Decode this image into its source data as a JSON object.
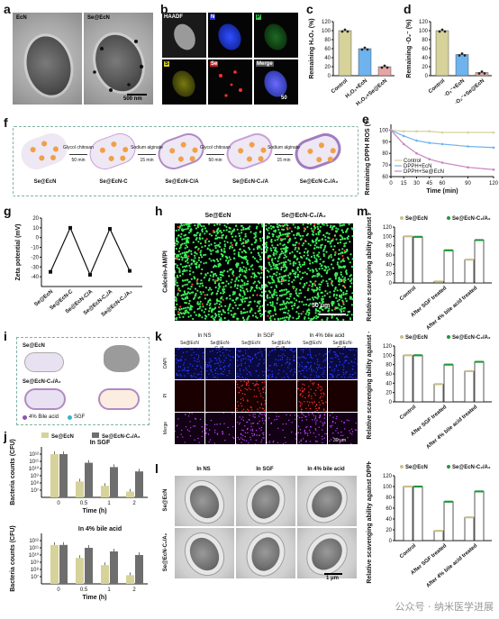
{
  "panels": {
    "a": {
      "label": "a",
      "titles": [
        "EcN",
        "Se@EcN"
      ],
      "scale": "500 nm"
    },
    "b": {
      "label": "b",
      "channels": [
        "HAADF",
        "N",
        "P",
        "S",
        "Se",
        "Merge"
      ],
      "scale": "50"
    },
    "c": {
      "label": "c",
      "ylabel": "Remaining H₂O₂ (%)",
      "categories": [
        "Control",
        "H₂O₂+EcN",
        "H₂O₂+Se@EcN"
      ]
    },
    "d": {
      "label": "d",
      "ylabel": "Remaining ·O₂⁻ (%)",
      "categories": [
        "Control",
        "·O₂⁻+EcN",
        "·O₂⁻+Se@EcN"
      ]
    },
    "e": {
      "label": "e",
      "ylabel": "Remaining DPPH ROS (%)",
      "xlabel": "Time (min)",
      "legend": [
        "Control",
        "DPPH+EcN",
        "DPPH+Se@EcN"
      ]
    },
    "f": {
      "label": "f",
      "cells": [
        "Se@EcN",
        "Se@EcN-C",
        "Se@EcN-C/A",
        "Se@EcN-C₂/A",
        "Se@EcN-C₂/A₂"
      ],
      "steps": [
        [
          "Glycol chitosan",
          "50 min"
        ],
        [
          "Sodium alginate",
          "15 min"
        ],
        [
          "Glycol chitosan",
          "50 min"
        ],
        [
          "Sodium alginate",
          "15 min"
        ]
      ]
    },
    "g": {
      "label": "g",
      "ylabel": "Zeta potential (mV)"
    },
    "h": {
      "label": "h",
      "titles": [
        "Se@EcN",
        "Se@EcN-C₂/A₂"
      ],
      "ylabel": "Calcein-AM/PI",
      "scale": "50 μm"
    },
    "i": {
      "label": "i",
      "top": "Se@EcN",
      "bottom": "Se@EcN-C₂/A₂",
      "legend": [
        "4% Bile acid",
        "SGF"
      ]
    },
    "j": {
      "label": "j",
      "legend": [
        "Se@EcN",
        "Se@EcN-C₂/A₂"
      ],
      "titles": [
        "In SGF",
        "In 4% bile acid"
      ],
      "ylabel": "Bacteria counts (CFU)",
      "xlabel": "Time (h)"
    },
    "k": {
      "label": "k",
      "groups": [
        "In NS",
        "In SGF",
        "In 4% bile acid"
      ],
      "sub": [
        "Se@EcN",
        "Se@EcN-C₂/A₂"
      ],
      "rows": [
        "DAPI",
        "PI",
        "Merge"
      ],
      "scale": "30 μm"
    },
    "l": {
      "label": "l",
      "cols": [
        "In NS",
        "In SGF",
        "In 4% bile acid"
      ],
      "rows": [
        "Se@EcN",
        "Se@EcN-C₂/A₂"
      ],
      "scale": "1 μm"
    },
    "m": {
      "label": "m",
      "legend": [
        "Se@EcN",
        "Se@EcN-C₂/A₂"
      ],
      "ylabels": [
        "Relative scavenging ability against H₂O₂ (%)",
        "Relative scavenging ability against ·O₂⁻ (%)",
        "Relative scavenging ability against DPPH ROS (%)"
      ],
      "categories": [
        "Control",
        "After SGF treated",
        "After 4% bile acid treated"
      ]
    }
  },
  "watermark": "公众号 · 纳米医学进展",
  "colors": {
    "olive": "#d6d29a",
    "gray": "#6e6e6e",
    "blue": "#6fb3ee",
    "pink": "#e7a6a6",
    "green": "#1c9a38",
    "purple": "#c984c1"
  },
  "chart_data": [
    {
      "id": "c",
      "type": "bar",
      "categories": [
        "Control",
        "H₂O₂+EcN",
        "H₂O₂+Se@EcN"
      ],
      "values": [
        100,
        60,
        20
      ],
      "ylim": [
        0,
        120
      ],
      "yticks": [
        "0",
        "20",
        "40",
        "60",
        "80",
        "100",
        "120"
      ]
    },
    {
      "id": "d",
      "type": "bar",
      "categories": [
        "Control",
        "·O₂⁻+EcN",
        "·O₂⁻+Se@EcN"
      ],
      "values": [
        100,
        47,
        7
      ],
      "ylim": [
        0,
        120
      ],
      "yticks": [
        "0",
        "20",
        "40",
        "60",
        "80",
        "100",
        "120"
      ]
    },
    {
      "id": "e",
      "type": "line",
      "x": [
        0,
        15,
        30,
        45,
        60,
        90,
        120
      ],
      "xticks": [
        "0",
        "15",
        "30",
        "45",
        "60",
        "90",
        "120"
      ],
      "ylim": [
        60,
        105
      ],
      "yticks": [
        "60",
        "70",
        "80",
        "90",
        "100"
      ],
      "series": [
        {
          "name": "Control",
          "values": [
            100,
            99,
            99,
            99,
            98,
            98,
            98
          ]
        },
        {
          "name": "DPPH+EcN",
          "values": [
            100,
            95,
            91,
            89,
            88,
            86,
            85
          ]
        },
        {
          "name": "DPPH+Se@EcN",
          "values": [
            100,
            88,
            80,
            75,
            72,
            68,
            66
          ]
        }
      ]
    },
    {
      "id": "g",
      "type": "line",
      "categories": [
        "Se@EcN",
        "Se@EcN-C",
        "Se@EcN-C/A",
        "Se@EcN-C₂/A",
        "Se@EcN-C₂/A₂"
      ],
      "values": [
        -35,
        10,
        -38,
        9,
        -34
      ],
      "ylim": [
        -50,
        20
      ],
      "yticks": [
        "-40",
        "-30",
        "-20",
        "-10",
        "0",
        "10",
        "20"
      ]
    },
    {
      "id": "j1",
      "type": "bar",
      "title": "In SGF",
      "categories": [
        "0",
        "0.5",
        "1",
        "2"
      ],
      "series": [
        {
          "name": "Se@EcN",
          "values": [
            12,
            8.2,
            7.6,
            6.8
          ]
        },
        {
          "name": "Se@EcN-C₂/A₂",
          "values": [
            12,
            10.8,
            10.2,
            9.6
          ]
        }
      ],
      "ylim": [
        6,
        13
      ],
      "yticks": [
        "10⁷",
        "10⁸",
        "10⁹",
        "10¹⁰",
        "10¹¹",
        "10¹²"
      ]
    },
    {
      "id": "j2",
      "type": "bar",
      "title": "In 4% bile acid",
      "categories": [
        "0",
        "0.5",
        "1",
        "2"
      ],
      "series": [
        {
          "name": "Se@EcN",
          "values": [
            11.4,
            9.6,
            8.6,
            7.2
          ]
        },
        {
          "name": "Se@EcN-C₂/A₂",
          "values": [
            11.4,
            11.0,
            10.5,
            10.0
          ]
        }
      ],
      "ylim": [
        6,
        13
      ],
      "yticks": [
        "10⁷",
        "10⁸",
        "10⁹",
        "10¹⁰",
        "10¹¹",
        "10¹²"
      ]
    },
    {
      "id": "m1",
      "type": "bar",
      "categories": [
        "Control",
        "After SGF treated",
        "After 4% bile acid treated"
      ],
      "series": [
        {
          "name": "Se@EcN",
          "values": [
            100,
            3,
            50
          ]
        },
        {
          "name": "Se@EcN-C₂/A₂",
          "values": [
            99,
            70,
            92
          ]
        }
      ],
      "ylim": [
        0,
        120
      ],
      "yticks": [
        "0",
        "20",
        "40",
        "60",
        "80",
        "100",
        "120"
      ]
    },
    {
      "id": "m2",
      "type": "bar",
      "categories": [
        "Control",
        "After SGF treated",
        "After 4% bile acid treated"
      ],
      "series": [
        {
          "name": "Se@EcN",
          "values": [
            100,
            38,
            66
          ]
        },
        {
          "name": "Se@EcN-C₂/A₂",
          "values": [
            100,
            80,
            86
          ]
        }
      ],
      "ylim": [
        0,
        120
      ],
      "yticks": [
        "0",
        "20",
        "40",
        "60",
        "80",
        "100",
        "120"
      ]
    },
    {
      "id": "m3",
      "type": "bar",
      "categories": [
        "Control",
        "After SGF treated",
        "After 4% bile acid treated"
      ],
      "series": [
        {
          "name": "Se@EcN",
          "values": [
            100,
            18,
            43
          ]
        },
        {
          "name": "Se@EcN-C₂/A₂",
          "values": [
            100,
            72,
            91
          ]
        }
      ],
      "ylim": [
        0,
        120
      ],
      "yticks": [
        "0",
        "20",
        "40",
        "60",
        "80",
        "100",
        "120"
      ]
    }
  ]
}
